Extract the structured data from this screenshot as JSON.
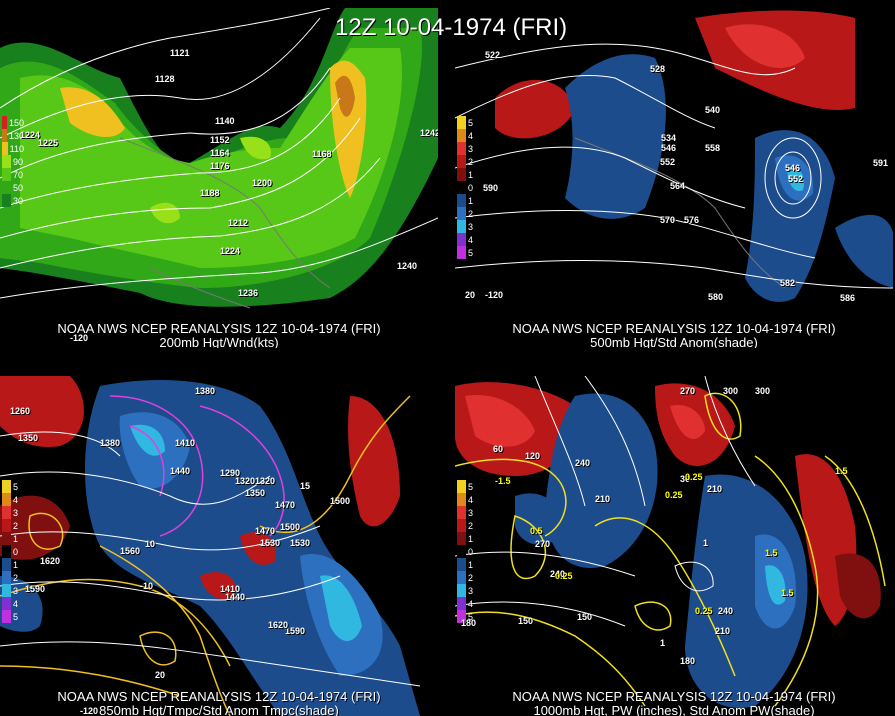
{
  "title": "12Z 10-04-1974 (FRI)",
  "panels": [
    {
      "id": "p1",
      "caption1": "NOAA NWS NCEP REANALYSIS 12Z 10-04-1974 (FRI)",
      "caption2": "200mb Hgt/Wnd(kts)",
      "legend": [
        {
          "label": "150",
          "color": "#d42020"
        },
        {
          "label": "130",
          "color": "#c87818"
        },
        {
          "label": "110",
          "color": "#f0c020"
        },
        {
          "label": "90",
          "color": "#98e018"
        },
        {
          "label": "70",
          "color": "#58c818"
        },
        {
          "label": "50",
          "color": "#30a818"
        },
        {
          "label": "30",
          "color": "#18801c"
        }
      ],
      "labels": [
        "1121",
        "1128",
        "1140",
        "1152",
        "1164",
        "1176",
        "1188",
        "1200",
        "1212",
        "1224",
        "1236",
        "1168",
        "1242",
        "1240",
        "1224",
        "1225",
        "-120"
      ]
    },
    {
      "id": "p2",
      "caption1": "NOAA NWS NCEP REANALYSIS 12Z 10-04-1974 (FRI)",
      "caption2": "500mb Hgt/Std Anom(shade)",
      "legend": [
        {
          "label": "5",
          "color": "#f0d020"
        },
        {
          "label": "4",
          "color": "#e08818"
        },
        {
          "label": "3",
          "color": "#e03030"
        },
        {
          "label": "2",
          "color": "#b81818"
        },
        {
          "label": "1",
          "color": "#801010"
        },
        {
          "label": "0",
          "color": "#000000"
        },
        {
          "label": "1",
          "color": "#1c4c8c"
        },
        {
          "label": "2",
          "color": "#2e70c0"
        },
        {
          "label": "3",
          "color": "#30b8e0"
        },
        {
          "label": "4",
          "color": "#8030d0"
        },
        {
          "label": "5",
          "color": "#c030e0"
        }
      ],
      "labels": [
        "522",
        "528",
        "540",
        "534",
        "546",
        "552",
        "558",
        "564",
        "570",
        "576",
        "582",
        "546",
        "552",
        "591",
        "586",
        "580",
        "590",
        "-120",
        "20"
      ]
    },
    {
      "id": "p3",
      "caption1": "NOAA NWS NCEP REANALYSIS 12Z 10-04-1974 (FRI)",
      "caption2": "850mb Hgt/Tmpc/Std Anom Tmpc(shade)",
      "legend": [
        {
          "label": "5",
          "color": "#f0d020"
        },
        {
          "label": "4",
          "color": "#e08818"
        },
        {
          "label": "3",
          "color": "#e03030"
        },
        {
          "label": "2",
          "color": "#b81818"
        },
        {
          "label": "1",
          "color": "#801010"
        },
        {
          "label": "0",
          "color": "#000000"
        },
        {
          "label": "1",
          "color": "#1c4c8c"
        },
        {
          "label": "2",
          "color": "#2e70c0"
        },
        {
          "label": "3",
          "color": "#30b8e0"
        },
        {
          "label": "4",
          "color": "#8030d0"
        },
        {
          "label": "5",
          "color": "#c030e0"
        }
      ],
      "labels": [
        "1380",
        "1410",
        "1440",
        "1470",
        "1500",
        "1530",
        "1560",
        "1590",
        "1620",
        "1350",
        "1290",
        "1320",
        "1260",
        "1410",
        "1440",
        "1470",
        "1530",
        "1590",
        "1620",
        "1380",
        "1350",
        "1320",
        "1500",
        "-10",
        "20",
        "15",
        "10",
        "-120"
      ]
    },
    {
      "id": "p4",
      "caption1": "NOAA NWS NCEP REANALYSIS 12Z 10-04-1974 (FRI)",
      "caption2": "1000mb Hgt, PW (inches), Std Anom PW(shade)",
      "legend": [
        {
          "label": "5",
          "color": "#f0d020"
        },
        {
          "label": "4",
          "color": "#e08818"
        },
        {
          "label": "3",
          "color": "#e03030"
        },
        {
          "label": "2",
          "color": "#b81818"
        },
        {
          "label": "1",
          "color": "#801010"
        },
        {
          "label": "0",
          "color": "#000000"
        },
        {
          "label": "1",
          "color": "#1c4c8c"
        },
        {
          "label": "2",
          "color": "#2e70c0"
        },
        {
          "label": "3",
          "color": "#30b8e0"
        },
        {
          "label": "4",
          "color": "#8030d0"
        },
        {
          "label": "5",
          "color": "#c030e0"
        }
      ],
      "labels": [
        "270",
        "300",
        "300",
        "240",
        "210",
        "180",
        "150",
        "120",
        "60",
        "30",
        "210",
        "240",
        "270",
        "0.25",
        "0.5",
        "0.25",
        "1",
        "1.5",
        "1.5",
        "0.25",
        "0.25",
        "1",
        "1.5",
        "180",
        "150",
        "210",
        "240",
        "-1.5"
      ]
    }
  ]
}
